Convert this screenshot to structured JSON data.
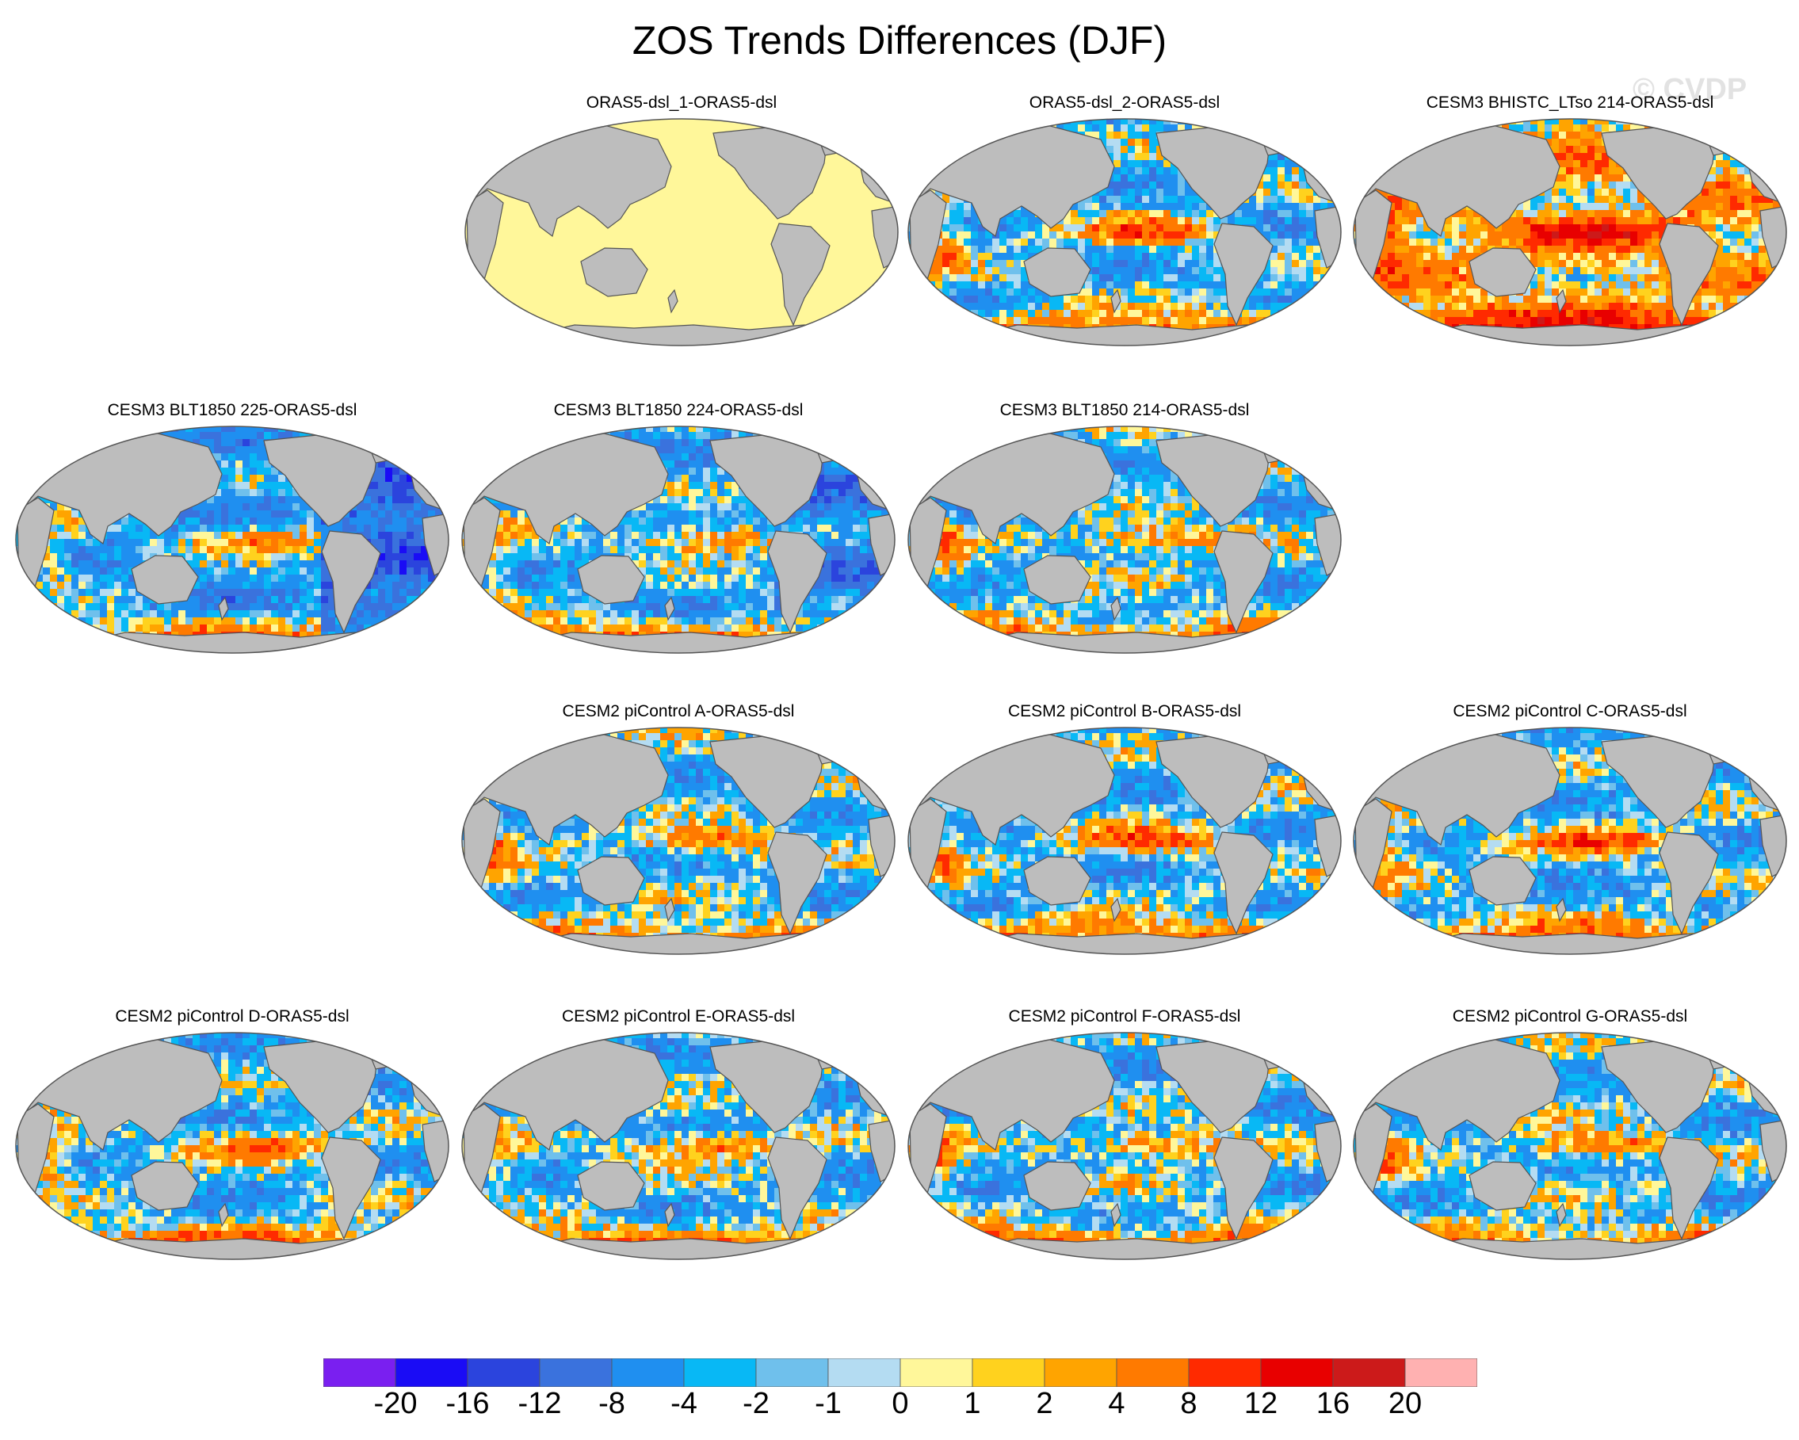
{
  "title": "ZOS Trends Differences (DJF)",
  "watermark": "© CVDP",
  "colors": {
    "land": "#bdbdbd",
    "coastline": "#555555",
    "frame": "#555555",
    "uniform_panel_fill": "#fff79a"
  },
  "panels": [
    {
      "label": "ORAS5-dsl_1-ORAS5-dsl",
      "uniform": true
    },
    {
      "label": "ORAS5-dsl_2-ORAS5-dsl"
    },
    {
      "label": "CESM3 BHISTC_LTso 214-ORAS5-dsl"
    },
    {
      "label": "CESM3 BLT1850 225-ORAS5-dsl"
    },
    {
      "label": "CESM3 BLT1850 224-ORAS5-dsl"
    },
    {
      "label": "CESM3 BLT1850 214-ORAS5-dsl"
    },
    {
      "label": "CESM2 piControl A-ORAS5-dsl"
    },
    {
      "label": "CESM2 piControl B-ORAS5-dsl"
    },
    {
      "label": "CESM2 piControl C-ORAS5-dsl"
    },
    {
      "label": "CESM2 piControl D-ORAS5-dsl"
    },
    {
      "label": "CESM2 piControl E-ORAS5-dsl"
    },
    {
      "label": "CESM2 piControl F-ORAS5-dsl"
    },
    {
      "label": "CESM2 piControl G-ORAS5-dsl"
    }
  ],
  "colorbar": {
    "labels": [
      "-20",
      "-16",
      "-12",
      "-8",
      "-4",
      "-2",
      "-1",
      "0",
      "1",
      "2",
      "4",
      "8",
      "12",
      "16",
      "20"
    ],
    "colors": [
      "#7a1ff0",
      "#1a0cf5",
      "#2b44dd",
      "#3a72dd",
      "#1f8ff0",
      "#08b8f5",
      "#6fc0ec",
      "#b4dcf2",
      "#fff79a",
      "#ffd21e",
      "#ffa400",
      "#ff7a00",
      "#ff2a00",
      "#e80000",
      "#cc1a1a",
      "#ffb1b1"
    ]
  }
}
